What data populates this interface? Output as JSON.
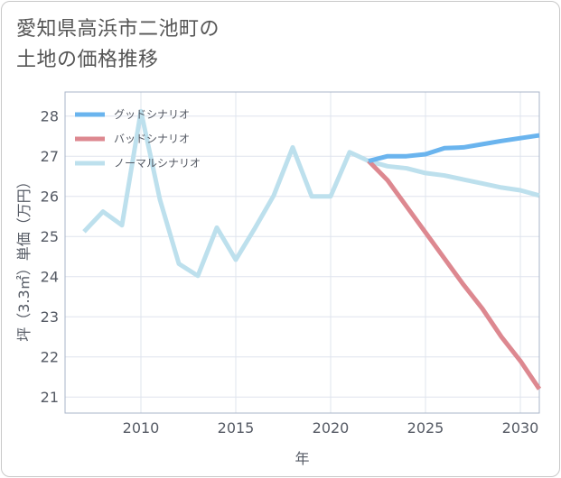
{
  "title": {
    "line1": "愛知県高浜市二池町の",
    "line2": "土地の価格推移"
  },
  "chart_data": {
    "type": "line",
    "xlabel": "年",
    "ylabel": "坪（3.3㎡）単価（万円）",
    "xlim": [
      2006,
      2031
    ],
    "ylim": [
      20.6,
      28.6
    ],
    "xticks": [
      2010,
      2015,
      2020,
      2025,
      2030
    ],
    "yticks": [
      21,
      22,
      23,
      24,
      25,
      26,
      27,
      28
    ],
    "legend_position": "top-left",
    "series": [
      {
        "name": "グッドシナリオ",
        "color": "#6ab4ee",
        "x": [
          2022,
          2023,
          2024,
          2025,
          2026,
          2027,
          2028,
          2029,
          2030,
          2031
        ],
        "y": [
          26.88,
          27.0,
          27.0,
          27.05,
          27.2,
          27.22,
          27.3,
          27.38,
          27.45,
          27.52
        ]
      },
      {
        "name": "バッドシナリオ",
        "color": "#dd8890",
        "x": [
          2022,
          2023,
          2024,
          2025,
          2026,
          2027,
          2028,
          2029,
          2030,
          2031
        ],
        "y": [
          26.88,
          26.4,
          25.75,
          25.1,
          24.45,
          23.8,
          23.2,
          22.5,
          21.9,
          21.2
        ]
      },
      {
        "name": "ノーマルシナリオ",
        "color": "#bde0ed",
        "x": [
          2007,
          2008,
          2009,
          2010,
          2011,
          2012,
          2013,
          2014,
          2015,
          2016,
          2017,
          2018,
          2019,
          2020,
          2021,
          2022,
          2023,
          2024,
          2025,
          2026,
          2027,
          2028,
          2029,
          2030,
          2031
        ],
        "y": [
          25.12,
          25.62,
          25.28,
          28.12,
          25.92,
          24.32,
          24.02,
          25.22,
          24.42,
          25.2,
          26.02,
          27.22,
          26.0,
          26.0,
          27.1,
          26.88,
          26.75,
          26.7,
          26.58,
          26.52,
          26.42,
          26.32,
          26.22,
          26.15,
          26.02
        ]
      }
    ]
  }
}
